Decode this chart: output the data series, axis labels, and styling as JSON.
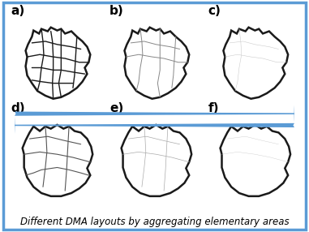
{
  "caption": "Different DMA layouts by aggregating elementary areas",
  "caption_fontsize": 8.5,
  "background_color": "#ffffff",
  "border_color": "#5b9bd5",
  "border_linewidth": 2.5,
  "arrow_color": "#5b9bd5",
  "labels": [
    "a)",
    "b)",
    "c)",
    "d)",
    "e)",
    "f)"
  ],
  "label_fontsize": 11,
  "label_fontweight": "bold",
  "figsize": [
    3.81,
    2.86
  ],
  "dpi": 100,
  "outer_color": "#1a1a1a",
  "outer_lw": 1.8,
  "inner_colors": [
    "#1a1a1a",
    "#888888",
    "#cccccc",
    "#555555",
    "#aaaaaa",
    "#cccccc"
  ],
  "inner_lws": [
    1.0,
    0.7,
    0.4,
    0.8,
    0.5,
    0.3
  ]
}
